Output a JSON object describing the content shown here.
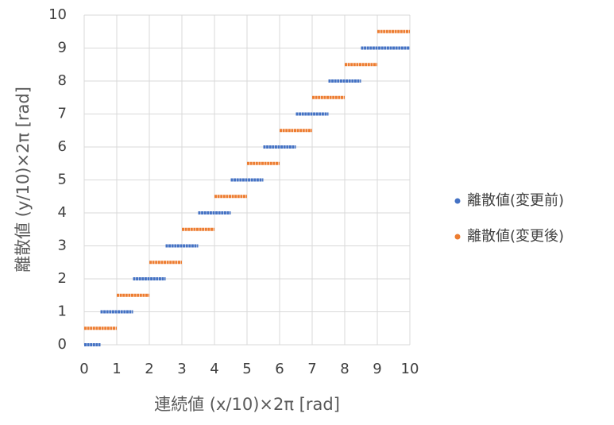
{
  "chart_data": {
    "type": "line",
    "xlabel": "連続値 (x/10)×2π [rad]",
    "ylabel": "離散値 (y/10)×2π [rad]",
    "xlim": [
      0,
      10
    ],
    "xticks": [
      0,
      1,
      2,
      3,
      4,
      5,
      6,
      7,
      8,
      9,
      10
    ],
    "ylim": [
      0,
      10
    ],
    "yticks": [
      0,
      1,
      2,
      3,
      4,
      5,
      6,
      7,
      8,
      9,
      10
    ],
    "grid": true,
    "legend": "right",
    "series": [
      {
        "name": "離散値(変更前)",
        "color": "#4472c4",
        "x": [
          0,
          0.5,
          0.5,
          0.5,
          1.5,
          1.5,
          1.5,
          2.5,
          2.5,
          2.5,
          3.5,
          3.5,
          3.5,
          4.5,
          4.5,
          4.5,
          5.5,
          5.5,
          5.5,
          6.5,
          6.5,
          6.5,
          7.5,
          7.5,
          7.5,
          8.5,
          8.5,
          8.5,
          10
        ],
        "values": [
          0,
          0,
          null,
          1,
          1,
          null,
          2,
          2,
          null,
          3,
          3,
          null,
          4,
          4,
          null,
          5,
          5,
          null,
          6,
          6,
          null,
          7,
          7,
          null,
          8,
          8,
          null,
          9,
          9
        ]
      },
      {
        "name": "離散値(変更後)",
        "color": "#ed7d31",
        "x": [
          0,
          1,
          1,
          1,
          2,
          2,
          2,
          3,
          3,
          3,
          4,
          4,
          4,
          5,
          5,
          5,
          6,
          6,
          6,
          7,
          7,
          7,
          8,
          8,
          8,
          9,
          9,
          9,
          10
        ],
        "values": [
          0.5,
          0.5,
          null,
          1.5,
          1.5,
          null,
          2.5,
          2.5,
          null,
          3.5,
          3.5,
          null,
          4.5,
          4.5,
          null,
          5.5,
          5.5,
          null,
          6.5,
          6.5,
          null,
          7.5,
          7.5,
          null,
          8.5,
          8.5,
          null,
          9.5,
          9.5
        ]
      }
    ]
  }
}
